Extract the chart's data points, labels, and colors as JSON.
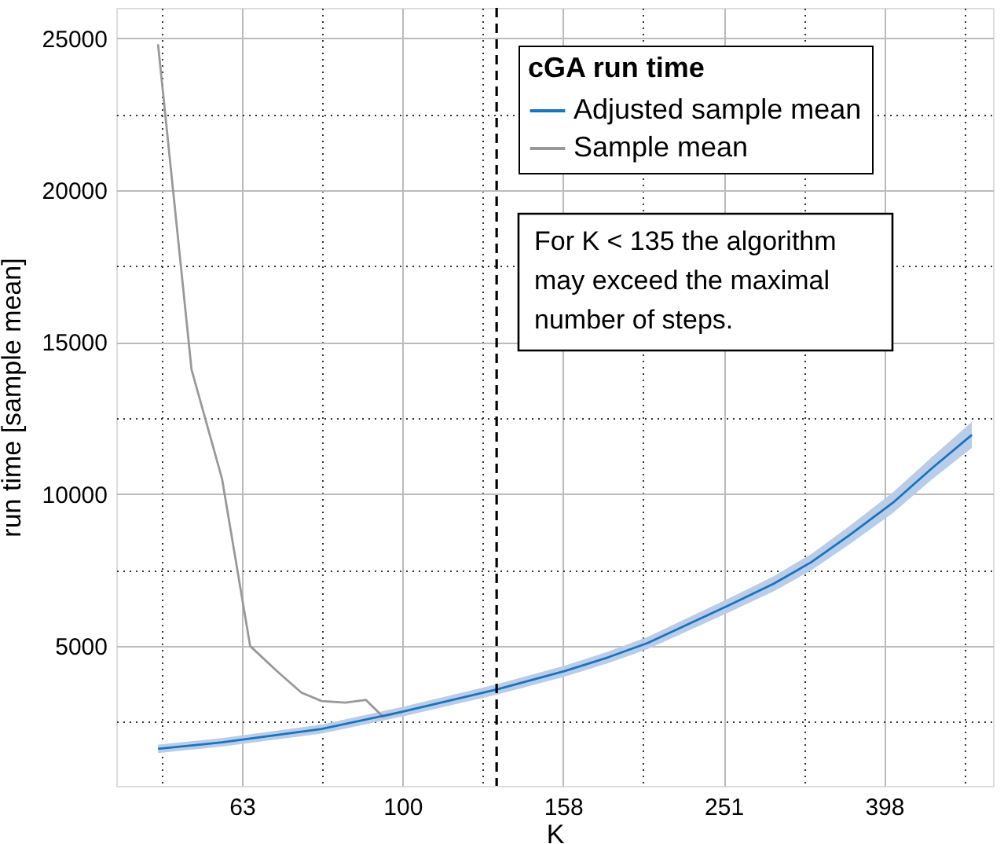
{
  "chart_data": {
    "type": "line",
    "xlabel": "K",
    "ylabel": "run time [sample mean]",
    "legend_title": "cGA run time",
    "legend": "top right",
    "grid": true,
    "log": "x",
    "xlim": [
      44,
      544
    ],
    "ylim": [
      400,
      26000
    ],
    "xticks": [
      {
        "value": 50.119,
        "label": null
      },
      {
        "value": 63.0957,
        "label": "63"
      },
      {
        "value": 79.433,
        "label": null
      },
      100,
      {
        "value": 125.893,
        "label": null
      },
      {
        "value": 158.489,
        "label": "158"
      },
      {
        "value": 199.526,
        "label": null
      },
      {
        "value": 251.189,
        "label": "251"
      },
      {
        "value": 316.228,
        "label": null
      },
      {
        "value": 398.107,
        "label": "398"
      },
      {
        "value": 501.187,
        "label": null
      }
    ],
    "yticks": [
      {
        "value": 2500,
        "label": null
      },
      5000,
      {
        "value": 7500,
        "label": null
      },
      10000,
      {
        "value": 12500,
        "label": null
      },
      15000,
      {
        "value": 17500,
        "label": null
      },
      20000,
      {
        "value": 22500,
        "label": null
      },
      25000
    ],
    "series": [
      {
        "name": "Adjusted sample mean",
        "color": "#1a73bd",
        "x": [
          49.6,
          59.6,
          79.3,
          100,
          131,
          159,
          180,
          202,
          255,
          290,
          323,
          360,
          408,
          457,
          512
        ],
        "values": [
          1620,
          1830,
          2270,
          2840,
          3570,
          4170,
          4620,
          5100,
          6340,
          7050,
          7760,
          8640,
          9710,
          10860,
          11950
        ],
        "lower": [
          1480,
          1690,
          2120,
          2680,
          3400,
          3990,
          4430,
          4900,
          6110,
          6800,
          7490,
          8340,
          9370,
          10490,
          11520
        ],
        "upper": [
          1760,
          1970,
          2420,
          3000,
          3740,
          4350,
          4810,
          5300,
          6570,
          7300,
          8030,
          8940,
          10050,
          11230,
          12380
        ]
      },
      {
        "name": "Sample mean",
        "color": "#999999",
        "x": [
          49.6,
          54.6,
          59.6,
          64.6,
          69.8,
          74.8,
          79.3,
          84.9,
          90,
          94.5,
          100
        ],
        "values": [
          24800,
          14100,
          10500,
          5000,
          4170,
          3470,
          3190,
          3140,
          3230,
          2680,
          2840
        ]
      }
    ],
    "ref_lines": [
      {
        "axis": "x",
        "value": 131,
        "color": "#000000",
        "line_style": "dashed"
      }
    ],
    "annotations": [
      "For K < 135 the algorithm\nmay exceed the maximal\nnumber of steps."
    ]
  }
}
